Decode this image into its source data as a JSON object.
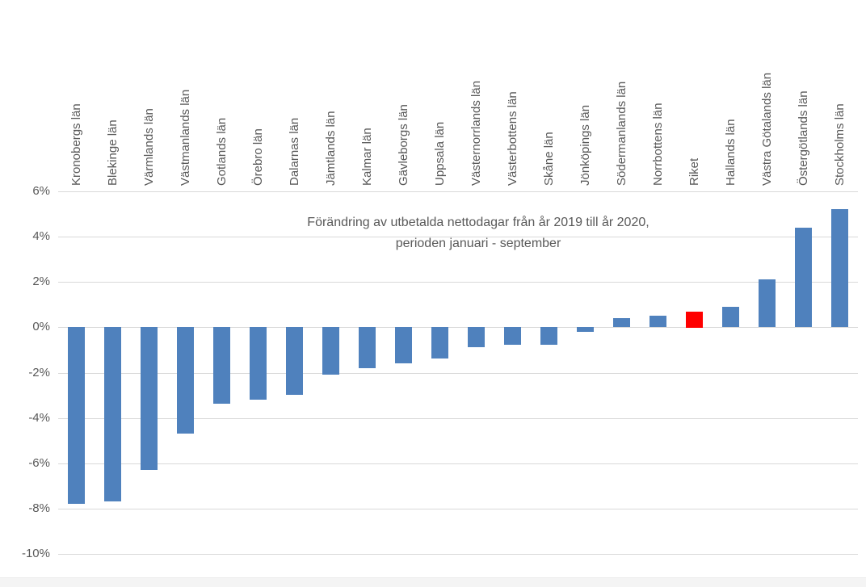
{
  "chart_data": {
    "type": "bar",
    "title": "Förändring av utbetalda nettodagar från år 2019 till år 2020, perioden januari - september",
    "title_line1": "Förändring av utbetalda nettodagar från år 2019 till år 2020,",
    "title_line2": "perioden januari - september",
    "xlabel": "",
    "ylabel": "",
    "categories": [
      "Kronobergs län",
      "Blekinge län",
      "Värmlands län",
      "Västmanlands län",
      "Gotlands län",
      "Örebro län",
      "Dalarnas län",
      "Jämtlands län",
      "Kalmar län",
      "Gävleborgs län",
      "Uppsala län",
      "Västernorrlands län",
      "Västerbottens län",
      "Skåne län",
      "Jönköpings län",
      "Södermanlands län",
      "Norrbottens län",
      "Riket",
      "Hallands län",
      "Västra Götalands län",
      "Östergötlands län",
      "Stockholms län"
    ],
    "values": [
      -7.8,
      -7.7,
      -6.3,
      -4.7,
      -3.4,
      -3.2,
      -3.0,
      -2.1,
      -1.8,
      -1.6,
      -1.4,
      -0.9,
      -0.8,
      -0.8,
      -0.2,
      0.4,
      0.5,
      0.7,
      0.9,
      2.1,
      4.4,
      5.2
    ],
    "value_unit": "%",
    "highlight_category": "Riket",
    "highlight_index": 17,
    "bar_color": "#4f81bd",
    "highlight_color": "#ff0000",
    "y_ticks": [
      "6%",
      "4%",
      "2%",
      "0%",
      "-2%",
      "-4%",
      "-6%",
      "-8%",
      "-10%"
    ],
    "y_tick_values": [
      6,
      4,
      2,
      0,
      -2,
      -4,
      -6,
      -8,
      -10
    ],
    "ylim": [
      -10,
      6
    ],
    "grid": true,
    "gridline_color": "#d9d9d9",
    "text_color": "#595959",
    "title_color": "#595959",
    "legend": "none",
    "x_labels_rotation": 90
  }
}
